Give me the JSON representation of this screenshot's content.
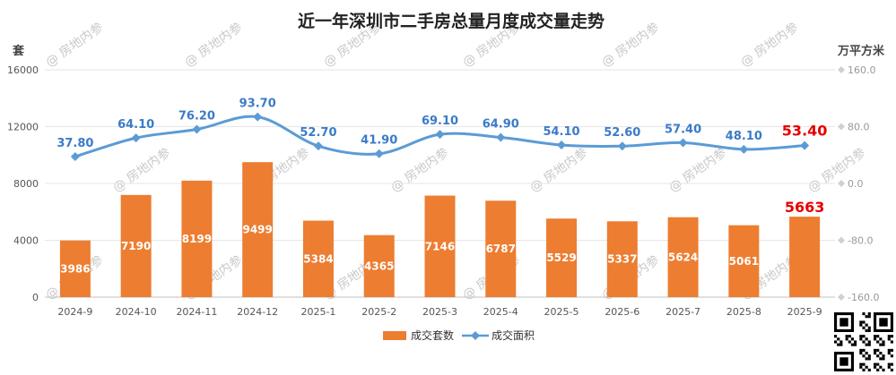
{
  "chart_data": {
    "type": "bar+line",
    "title": "近一年深圳市二手房总量月度成交量走势",
    "categories": [
      "2024-9",
      "2024-10",
      "2024-11",
      "2024-12",
      "2025-1",
      "2025-2",
      "2025-3",
      "2025-4",
      "2025-5",
      "2025-6",
      "2025-7",
      "2025-8",
      "2025-9"
    ],
    "series": [
      {
        "name": "成交套数",
        "type": "bar",
        "axis": "left",
        "color": "#ed7d31",
        "values": [
          3986,
          7190,
          8199,
          9499,
          5384,
          4365,
          7146,
          6787,
          5529,
          5337,
          5624,
          5061,
          5663
        ],
        "labels": [
          "3986",
          "7190",
          "8199",
          "9499",
          "5384",
          "4365",
          "7146",
          "6787",
          "5529",
          "5337",
          "5624",
          "5061",
          "5663"
        ]
      },
      {
        "name": "成交面积",
        "type": "line",
        "axis": "right",
        "color": "#5b9bd5",
        "values": [
          37.8,
          64.1,
          76.2,
          93.7,
          52.7,
          41.9,
          69.1,
          64.9,
          54.1,
          52.6,
          57.4,
          48.1,
          53.4
        ],
        "labels": [
          "37.80",
          "64.10",
          "76.20",
          "93.70",
          "52.70",
          "41.90",
          "69.10",
          "64.90",
          "54.10",
          "52.60",
          "57.40",
          "48.10",
          "53.40"
        ]
      }
    ],
    "left_axis": {
      "unit": "套",
      "min": 0,
      "max": 16000,
      "ticks": [
        "0",
        "4000",
        "8000",
        "12000",
        "16000"
      ]
    },
    "right_axis": {
      "unit": "万平方米",
      "min": -160,
      "max": 160,
      "ticks": [
        "-160.0",
        "-80.0",
        "0.0",
        "80.0",
        "160.0"
      ]
    },
    "highlight_color": "#e60000",
    "legend_position": "bottom"
  },
  "watermark": "@ 房地内参"
}
